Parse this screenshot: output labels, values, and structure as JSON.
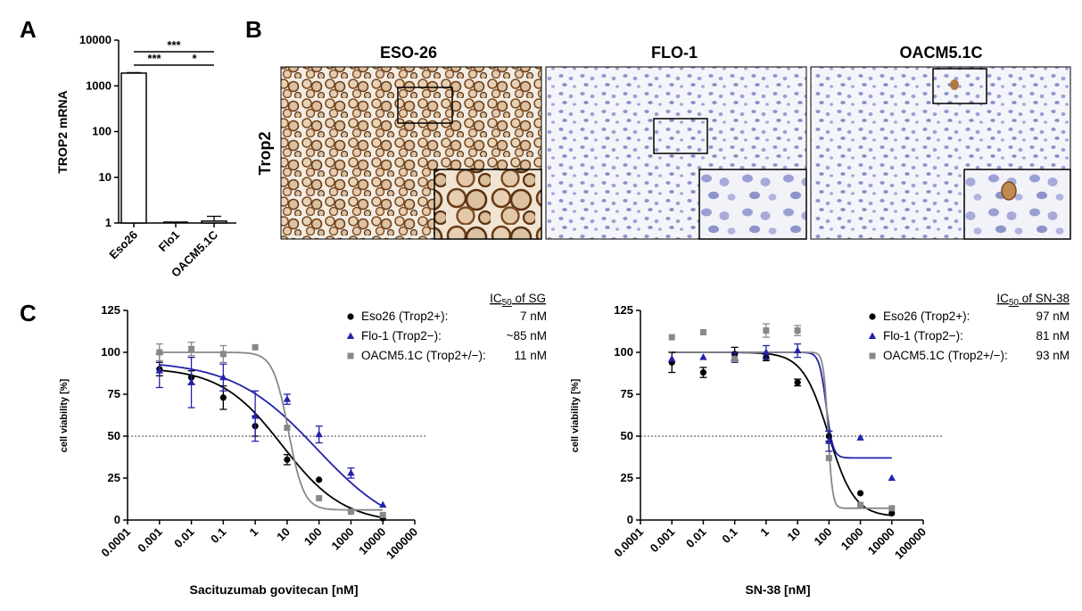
{
  "figure": {
    "panel_letters": [
      "A",
      "B",
      "C"
    ]
  },
  "panel_a": {
    "ylabel": "TROP2 mRNA",
    "y_ticks": [
      "1",
      "10",
      "100",
      "1000",
      "10000"
    ],
    "categories": [
      "Eso26",
      "Flo1",
      "OACM5.1C"
    ],
    "significance": [
      "***",
      "***",
      "*"
    ]
  },
  "panel_b": {
    "row_label": "Trop2",
    "columns": [
      "ESO-26",
      "FLO-1",
      "OACM5.1C"
    ]
  },
  "panel_c_left": {
    "legend_title_prefix": "IC",
    "legend_title_sub": "50",
    "legend_title_suffix": " of SG",
    "xlabel": "Sacituzumab govitecan [nM]",
    "ylabel": "cell viability [%]",
    "legend": [
      {
        "name": "Eso26 (Trop2+):",
        "value": "7 nM"
      },
      {
        "name": "Flo-1 (Trop2−):",
        "value": "~85 nM"
      },
      {
        "name": "OACM5.1C (Trop2+/−):",
        "value": "11 nM"
      }
    ]
  },
  "panel_c_right": {
    "legend_title_prefix": "IC",
    "legend_title_sub": "50",
    "legend_title_suffix": " of SN-38",
    "xlabel": "SN-38 [nM]",
    "ylabel": "cell viability [%]",
    "legend": [
      {
        "name": "Eso26 (Trop2+):",
        "value": "97 nM"
      },
      {
        "name": "Flo-1 (Trop2−):",
        "value": "81 nM"
      },
      {
        "name": "OACM5.1C (Trop2+/−):",
        "value": "93 nM"
      }
    ]
  },
  "chart_data": [
    {
      "type": "bar",
      "panel": "A",
      "categories": [
        "Eso26",
        "Flo1",
        "OACM5.1C"
      ],
      "values": [
        1900,
        1,
        1.1
      ],
      "error_upper": [
        1950,
        1,
        1.4
      ],
      "yscale": "log",
      "ylim": [
        1,
        10000
      ],
      "ylabel": "TROP2 mRNA",
      "significance": [
        {
          "pair": [
            "Eso26",
            "Flo1"
          ],
          "label": "***"
        },
        {
          "pair": [
            "Eso26",
            "OACM5.1C"
          ],
          "label": "***"
        },
        {
          "pair": [
            "Flo1",
            "OACM5.1C"
          ],
          "label": "*"
        }
      ]
    },
    {
      "type": "scatter",
      "panel": "C-left",
      "xscale": "log",
      "xlim": [
        0.0001,
        100000
      ],
      "ylim": [
        0,
        125
      ],
      "x_ticks": [
        "0.0001",
        "0.001",
        "0.01",
        "0.1",
        "1",
        "10",
        "100",
        "1000",
        "10000",
        "100000"
      ],
      "y_ticks": [
        "0",
        "25",
        "50",
        "75",
        "100",
        "125"
      ],
      "reference_line_y": 50,
      "xlabel": "Sacituzumab govitecan [nM]",
      "ylabel": "cell viability [%]",
      "series": [
        {
          "name": "Eso26 (Trop2+)",
          "color": "#000000",
          "marker": "circle",
          "x": [
            0.001,
            0.01,
            0.1,
            1,
            10,
            100,
            1000,
            10000
          ],
          "y": [
            90,
            85,
            73,
            56,
            36,
            24,
            5,
            1
          ],
          "err": [
            4,
            4,
            7,
            6,
            3,
            0,
            0,
            0
          ],
          "ic50": 7,
          "top": 91,
          "bottom": -2,
          "hill": 0.45
        },
        {
          "name": "Flo-1 (Trop2−)",
          "color": "#2222aa",
          "marker": "triangle",
          "x": [
            0.001,
            0.01,
            0.1,
            1,
            10,
            100,
            1000,
            10000
          ],
          "y": [
            89,
            82,
            85,
            62,
            72,
            51,
            28,
            9
          ],
          "err": [
            10,
            15,
            8,
            15,
            3,
            5,
            3,
            0
          ],
          "ic50": 85,
          "top": 95,
          "bottom": -10,
          "hill": 0.33
        },
        {
          "name": "OACM5.1C (Trop2+/−)",
          "color": "#888888",
          "marker": "square",
          "x": [
            0.001,
            0.01,
            0.1,
            1,
            10,
            100,
            1000,
            10000
          ],
          "y": [
            100,
            102,
            99,
            103,
            55,
            13,
            5,
            3
          ],
          "err": [
            5,
            4,
            5,
            0,
            0,
            0,
            0,
            0
          ],
          "ic50": 11,
          "top": 100,
          "bottom": 6,
          "hill": 1.8
        }
      ]
    },
    {
      "type": "scatter",
      "panel": "C-right",
      "xscale": "log",
      "xlim": [
        0.0001,
        100000
      ],
      "ylim": [
        0,
        125
      ],
      "x_ticks": [
        "0.0001",
        "0.001",
        "0.01",
        "0.1",
        "1",
        "10",
        "100",
        "1000",
        "10000",
        "100000"
      ],
      "y_ticks": [
        "0",
        "25",
        "50",
        "75",
        "100",
        "125"
      ],
      "reference_line_y": 50,
      "xlabel": "SN-38 [nM]",
      "ylabel": "cell viability [%]",
      "series": [
        {
          "name": "Eso26 (Trop2+)",
          "color": "#000000",
          "marker": "circle",
          "x": [
            0.001,
            0.01,
            0.1,
            1,
            10,
            100,
            1000,
            10000
          ],
          "y": [
            94,
            88,
            99,
            97,
            82,
            50,
            16,
            4
          ],
          "err": [
            6,
            3,
            4,
            2,
            2,
            3,
            0,
            0
          ],
          "ic50": 97,
          "top": 100,
          "bottom": 2,
          "hill": 1.05
        },
        {
          "name": "Flo-1 (Trop2−)",
          "color": "#2222aa",
          "marker": "triangle",
          "x": [
            0.001,
            0.01,
            0.1,
            1,
            10,
            100,
            1000,
            10000
          ],
          "y": [
            96,
            97,
            97,
            100,
            101,
            47,
            49,
            25
          ],
          "err": [
            0,
            0,
            3,
            4,
            4,
            6,
            0,
            0
          ],
          "ic50": 81,
          "top": 100,
          "bottom": 37,
          "hill": 4
        },
        {
          "name": "OACM5.1C (Trop2+/−)",
          "color": "#888888",
          "marker": "square",
          "x": [
            0.001,
            0.01,
            0.1,
            1,
            10,
            100,
            1000,
            10000
          ],
          "y": [
            109,
            112,
            96,
            113,
            113,
            37,
            9,
            7
          ],
          "err": [
            0,
            0,
            0,
            4,
            3,
            0,
            0,
            0
          ],
          "ic50": 93,
          "top": 100,
          "bottom": 7,
          "hill": 6
        }
      ]
    }
  ]
}
